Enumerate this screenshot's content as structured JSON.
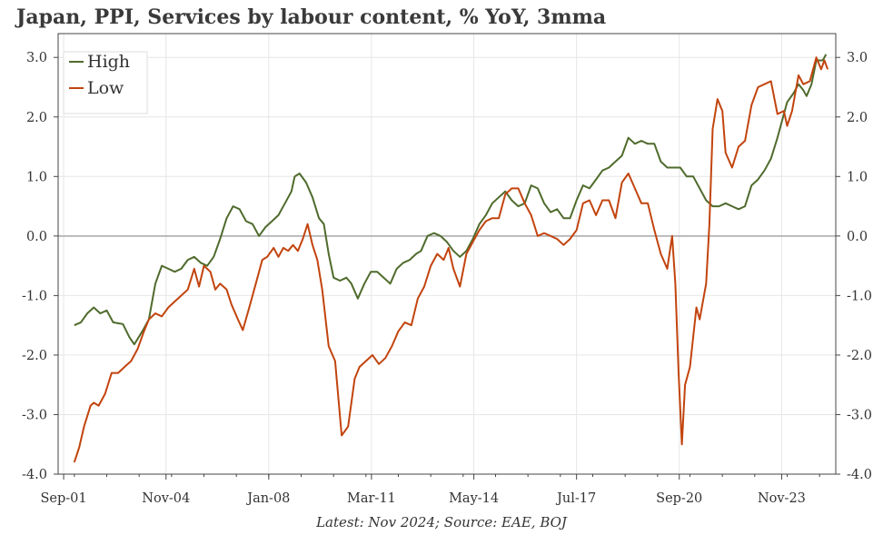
{
  "title": "Japan, PPI, Services by labour content, % YoY, 3mma",
  "caption": "Latest: Nov 2024; Source: EAE, BOJ",
  "colors": {
    "high": "#4f6b2c",
    "low": "#c2440e",
    "zero_line": "#a8a8a8",
    "grid": "#e6e6e6"
  },
  "chart_data": {
    "type": "line",
    "title": "Japan, PPI, Services by labour content, % YoY, 3mma",
    "xlabel": "",
    "ylabel": "",
    "xlim": [
      2001.5,
      2025.5
    ],
    "ylim": [
      -4.0,
      3.4
    ],
    "x_ticks": [
      2001.67,
      2004.83,
      2008.0,
      2011.17,
      2014.33,
      2017.5,
      2020.67,
      2023.83
    ],
    "x_tick_labels": [
      "Sep-01",
      "Nov-04",
      "Jan-08",
      "Mar-11",
      "May-14",
      "Jul-17",
      "Sep-20",
      "Nov-23"
    ],
    "y_ticks": [
      -4.0,
      -3.0,
      -2.0,
      -1.0,
      0.0,
      1.0,
      2.0,
      3.0
    ],
    "y_tick_labels": [
      "-4.0",
      "-3.0",
      "-2.0",
      "-1.0",
      "0.0",
      "1.0",
      "2.0",
      "3.0"
    ],
    "grid": true,
    "legend": "top-left",
    "series": [
      {
        "name": "High",
        "key": "high",
        "points": [
          [
            2002.0,
            -1.5
          ],
          [
            2002.2,
            -1.45
          ],
          [
            2002.4,
            -1.3
          ],
          [
            2002.6,
            -1.2
          ],
          [
            2002.8,
            -1.3
          ],
          [
            2003.0,
            -1.25
          ],
          [
            2003.2,
            -1.45
          ],
          [
            2003.5,
            -1.48
          ],
          [
            2003.7,
            -1.7
          ],
          [
            2003.85,
            -1.82
          ],
          [
            2004.1,
            -1.6
          ],
          [
            2004.3,
            -1.4
          ],
          [
            2004.5,
            -0.8
          ],
          [
            2004.7,
            -0.5
          ],
          [
            2004.9,
            -0.55
          ],
          [
            2005.1,
            -0.6
          ],
          [
            2005.3,
            -0.55
          ],
          [
            2005.5,
            -0.4
          ],
          [
            2005.7,
            -0.35
          ],
          [
            2005.9,
            -0.45
          ],
          [
            2006.1,
            -0.5
          ],
          [
            2006.3,
            -0.35
          ],
          [
            2006.5,
            -0.05
          ],
          [
            2006.7,
            0.3
          ],
          [
            2006.9,
            0.5
          ],
          [
            2007.1,
            0.45
          ],
          [
            2007.3,
            0.25
          ],
          [
            2007.5,
            0.2
          ],
          [
            2007.7,
            0.0
          ],
          [
            2007.9,
            0.15
          ],
          [
            2008.1,
            0.25
          ],
          [
            2008.3,
            0.35
          ],
          [
            2008.5,
            0.55
          ],
          [
            2008.7,
            0.75
          ],
          [
            2008.8,
            1.0
          ],
          [
            2008.95,
            1.05
          ],
          [
            2009.15,
            0.9
          ],
          [
            2009.35,
            0.65
          ],
          [
            2009.55,
            0.3
          ],
          [
            2009.7,
            0.2
          ],
          [
            2009.85,
            -0.3
          ],
          [
            2010.0,
            -0.7
          ],
          [
            2010.2,
            -0.75
          ],
          [
            2010.4,
            -0.7
          ],
          [
            2010.55,
            -0.8
          ],
          [
            2010.75,
            -1.05
          ],
          [
            2010.95,
            -0.8
          ],
          [
            2011.15,
            -0.6
          ],
          [
            2011.35,
            -0.6
          ],
          [
            2011.55,
            -0.7
          ],
          [
            2011.75,
            -0.8
          ],
          [
            2011.95,
            -0.55
          ],
          [
            2012.15,
            -0.45
          ],
          [
            2012.35,
            -0.4
          ],
          [
            2012.55,
            -0.3
          ],
          [
            2012.7,
            -0.25
          ],
          [
            2012.9,
            0.0
          ],
          [
            2013.1,
            0.05
          ],
          [
            2013.3,
            0.0
          ],
          [
            2013.5,
            -0.1
          ],
          [
            2013.7,
            -0.25
          ],
          [
            2013.9,
            -0.35
          ],
          [
            2014.1,
            -0.25
          ],
          [
            2014.3,
            -0.05
          ],
          [
            2014.5,
            0.2
          ],
          [
            2014.7,
            0.35
          ],
          [
            2014.9,
            0.55
          ],
          [
            2015.1,
            0.65
          ],
          [
            2015.3,
            0.75
          ],
          [
            2015.5,
            0.6
          ],
          [
            2015.7,
            0.5
          ],
          [
            2015.9,
            0.55
          ],
          [
            2016.1,
            0.85
          ],
          [
            2016.3,
            0.8
          ],
          [
            2016.5,
            0.55
          ],
          [
            2016.7,
            0.4
          ],
          [
            2016.9,
            0.45
          ],
          [
            2017.1,
            0.3
          ],
          [
            2017.3,
            0.3
          ],
          [
            2017.5,
            0.6
          ],
          [
            2017.7,
            0.85
          ],
          [
            2017.9,
            0.8
          ],
          [
            2018.1,
            0.95
          ],
          [
            2018.3,
            1.1
          ],
          [
            2018.5,
            1.15
          ],
          [
            2018.7,
            1.25
          ],
          [
            2018.9,
            1.35
          ],
          [
            2019.1,
            1.65
          ],
          [
            2019.3,
            1.55
          ],
          [
            2019.5,
            1.6
          ],
          [
            2019.7,
            1.55
          ],
          [
            2019.9,
            1.55
          ],
          [
            2020.1,
            1.25
          ],
          [
            2020.3,
            1.15
          ],
          [
            2020.5,
            1.15
          ],
          [
            2020.7,
            1.15
          ],
          [
            2020.9,
            1.0
          ],
          [
            2021.1,
            1.0
          ],
          [
            2021.3,
            0.8
          ],
          [
            2021.5,
            0.6
          ],
          [
            2021.7,
            0.5
          ],
          [
            2021.9,
            0.5
          ],
          [
            2022.1,
            0.55
          ],
          [
            2022.3,
            0.5
          ],
          [
            2022.5,
            0.45
          ],
          [
            2022.7,
            0.5
          ],
          [
            2022.9,
            0.85
          ],
          [
            2023.1,
            0.95
          ],
          [
            2023.3,
            1.1
          ],
          [
            2023.5,
            1.3
          ],
          [
            2023.7,
            1.65
          ],
          [
            2023.9,
            2.05
          ],
          [
            2024.0,
            2.25
          ],
          [
            2024.2,
            2.4
          ],
          [
            2024.35,
            2.55
          ],
          [
            2024.5,
            2.45
          ],
          [
            2024.6,
            2.35
          ],
          [
            2024.75,
            2.55
          ],
          [
            2024.9,
            2.95
          ],
          [
            2025.0,
            2.95
          ],
          [
            2025.1,
            2.95
          ],
          [
            2025.2,
            3.05
          ]
        ]
      },
      {
        "name": "Low",
        "key": "low",
        "points": [
          [
            2002.0,
            -3.8
          ],
          [
            2002.15,
            -3.55
          ],
          [
            2002.3,
            -3.2
          ],
          [
            2002.5,
            -2.85
          ],
          [
            2002.6,
            -2.8
          ],
          [
            2002.75,
            -2.85
          ],
          [
            2002.95,
            -2.65
          ],
          [
            2003.15,
            -2.3
          ],
          [
            2003.35,
            -2.3
          ],
          [
            2003.55,
            -2.2
          ],
          [
            2003.75,
            -2.1
          ],
          [
            2003.95,
            -1.9
          ],
          [
            2004.15,
            -1.6
          ],
          [
            2004.3,
            -1.4
          ],
          [
            2004.5,
            -1.3
          ],
          [
            2004.7,
            -1.35
          ],
          [
            2004.9,
            -1.2
          ],
          [
            2005.1,
            -1.1
          ],
          [
            2005.3,
            -1.0
          ],
          [
            2005.5,
            -0.9
          ],
          [
            2005.7,
            -0.55
          ],
          [
            2005.85,
            -0.85
          ],
          [
            2006.0,
            -0.5
          ],
          [
            2006.2,
            -0.6
          ],
          [
            2006.35,
            -0.9
          ],
          [
            2006.5,
            -0.8
          ],
          [
            2006.7,
            -0.9
          ],
          [
            2006.85,
            -1.15
          ],
          [
            2007.05,
            -1.4
          ],
          [
            2007.2,
            -1.58
          ],
          [
            2007.4,
            -1.2
          ],
          [
            2007.6,
            -0.8
          ],
          [
            2007.8,
            -0.4
          ],
          [
            2007.95,
            -0.35
          ],
          [
            2008.15,
            -0.2
          ],
          [
            2008.3,
            -0.35
          ],
          [
            2008.45,
            -0.2
          ],
          [
            2008.6,
            -0.25
          ],
          [
            2008.75,
            -0.15
          ],
          [
            2008.9,
            -0.25
          ],
          [
            2009.05,
            -0.05
          ],
          [
            2009.2,
            0.2
          ],
          [
            2009.35,
            -0.15
          ],
          [
            2009.5,
            -0.4
          ],
          [
            2009.65,
            -0.9
          ],
          [
            2009.85,
            -1.85
          ],
          [
            2010.05,
            -2.1
          ],
          [
            2010.25,
            -3.35
          ],
          [
            2010.45,
            -3.2
          ],
          [
            2010.65,
            -2.4
          ],
          [
            2010.8,
            -2.2
          ],
          [
            2011.0,
            -2.1
          ],
          [
            2011.2,
            -2.0
          ],
          [
            2011.4,
            -2.15
          ],
          [
            2011.6,
            -2.05
          ],
          [
            2011.8,
            -1.85
          ],
          [
            2012.0,
            -1.6
          ],
          [
            2012.2,
            -1.45
          ],
          [
            2012.4,
            -1.5
          ],
          [
            2012.6,
            -1.05
          ],
          [
            2012.8,
            -0.85
          ],
          [
            2013.0,
            -0.5
          ],
          [
            2013.2,
            -0.3
          ],
          [
            2013.4,
            -0.4
          ],
          [
            2013.55,
            -0.2
          ],
          [
            2013.7,
            -0.55
          ],
          [
            2013.9,
            -0.85
          ],
          [
            2014.1,
            -0.3
          ],
          [
            2014.3,
            -0.1
          ],
          [
            2014.5,
            0.1
          ],
          [
            2014.7,
            0.25
          ],
          [
            2014.9,
            0.3
          ],
          [
            2015.1,
            0.3
          ],
          [
            2015.3,
            0.7
          ],
          [
            2015.5,
            0.8
          ],
          [
            2015.7,
            0.8
          ],
          [
            2015.9,
            0.55
          ],
          [
            2016.1,
            0.35
          ],
          [
            2016.3,
            0.0
          ],
          [
            2016.5,
            0.05
          ],
          [
            2016.7,
            0.0
          ],
          [
            2016.9,
            -0.05
          ],
          [
            2017.1,
            -0.15
          ],
          [
            2017.3,
            -0.05
          ],
          [
            2017.5,
            0.1
          ],
          [
            2017.7,
            0.55
          ],
          [
            2017.9,
            0.6
          ],
          [
            2018.1,
            0.35
          ],
          [
            2018.3,
            0.6
          ],
          [
            2018.5,
            0.6
          ],
          [
            2018.7,
            0.3
          ],
          [
            2018.9,
            0.9
          ],
          [
            2019.1,
            1.05
          ],
          [
            2019.3,
            0.8
          ],
          [
            2019.5,
            0.55
          ],
          [
            2019.7,
            0.55
          ],
          [
            2019.9,
            0.1
          ],
          [
            2020.1,
            -0.3
          ],
          [
            2020.3,
            -0.55
          ],
          [
            2020.45,
            0.0
          ],
          [
            2020.55,
            -0.8
          ],
          [
            2020.65,
            -2.3
          ],
          [
            2020.75,
            -3.5
          ],
          [
            2020.85,
            -2.5
          ],
          [
            2021.0,
            -2.2
          ],
          [
            2021.2,
            -1.2
          ],
          [
            2021.3,
            -1.4
          ],
          [
            2021.5,
            -0.8
          ],
          [
            2021.6,
            0.2
          ],
          [
            2021.7,
            1.8
          ],
          [
            2021.85,
            2.3
          ],
          [
            2022.0,
            2.1
          ],
          [
            2022.1,
            1.4
          ],
          [
            2022.3,
            1.15
          ],
          [
            2022.5,
            1.5
          ],
          [
            2022.7,
            1.6
          ],
          [
            2022.9,
            2.2
          ],
          [
            2023.1,
            2.5
          ],
          [
            2023.3,
            2.55
          ],
          [
            2023.5,
            2.6
          ],
          [
            2023.7,
            2.05
          ],
          [
            2023.9,
            2.1
          ],
          [
            2024.0,
            1.85
          ],
          [
            2024.15,
            2.1
          ],
          [
            2024.35,
            2.7
          ],
          [
            2024.5,
            2.55
          ],
          [
            2024.7,
            2.6
          ],
          [
            2024.9,
            3.0
          ],
          [
            2025.05,
            2.8
          ],
          [
            2025.15,
            2.95
          ],
          [
            2025.25,
            2.8
          ]
        ]
      }
    ]
  }
}
